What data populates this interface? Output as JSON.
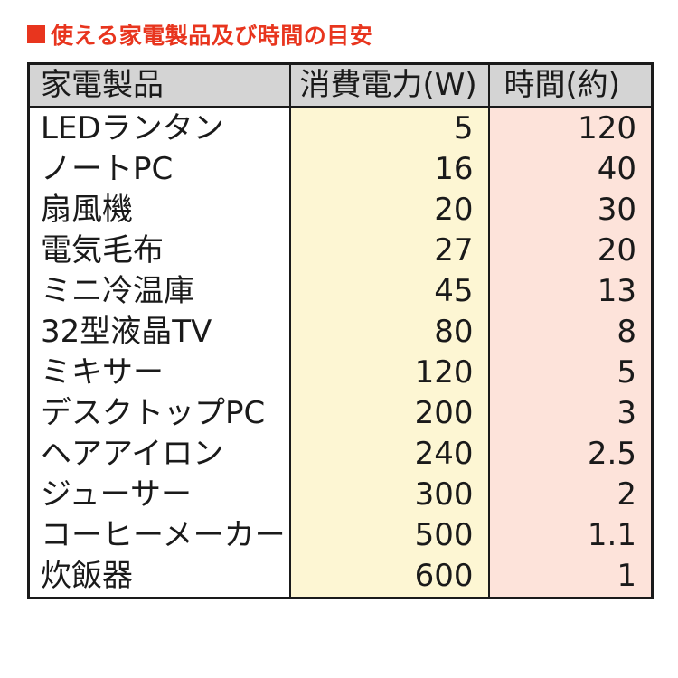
{
  "heading": {
    "marker": "■",
    "title": "使える家電製品及び時間の目安"
  },
  "table": {
    "headers": {
      "appliance": "家電製品",
      "power": "消費電力(W)",
      "time": "時間(約)"
    },
    "rows": [
      {
        "appliance": "LEDランタン",
        "power": "5",
        "time": "120"
      },
      {
        "appliance": "ノートPC",
        "power": "16",
        "time": "40"
      },
      {
        "appliance": "扇風機",
        "power": "20",
        "time": "30"
      },
      {
        "appliance": "電気毛布",
        "power": "27",
        "time": "20"
      },
      {
        "appliance": "ミニ冷温庫",
        "power": "45",
        "time": "13"
      },
      {
        "appliance": "32型液晶TV",
        "power": "80",
        "time": "8"
      },
      {
        "appliance": "ミキサー",
        "power": "120",
        "time": "5"
      },
      {
        "appliance": "デスクトップPC",
        "power": "200",
        "time": "3"
      },
      {
        "appliance": "ヘアアイロン",
        "power": "240",
        "time": "2.5"
      },
      {
        "appliance": "ジューサー",
        "power": "300",
        "time": "2"
      },
      {
        "appliance": "コーヒーメーカー",
        "power": "500",
        "time": "1.1"
      },
      {
        "appliance": "炊飯器",
        "power": "600",
        "time": "1"
      }
    ]
  },
  "colors": {
    "accent": "#e8351e",
    "header_bg": "#d4d4d4",
    "power_column_bg": "#fdf6d3",
    "time_column_bg": "#fde3da"
  }
}
